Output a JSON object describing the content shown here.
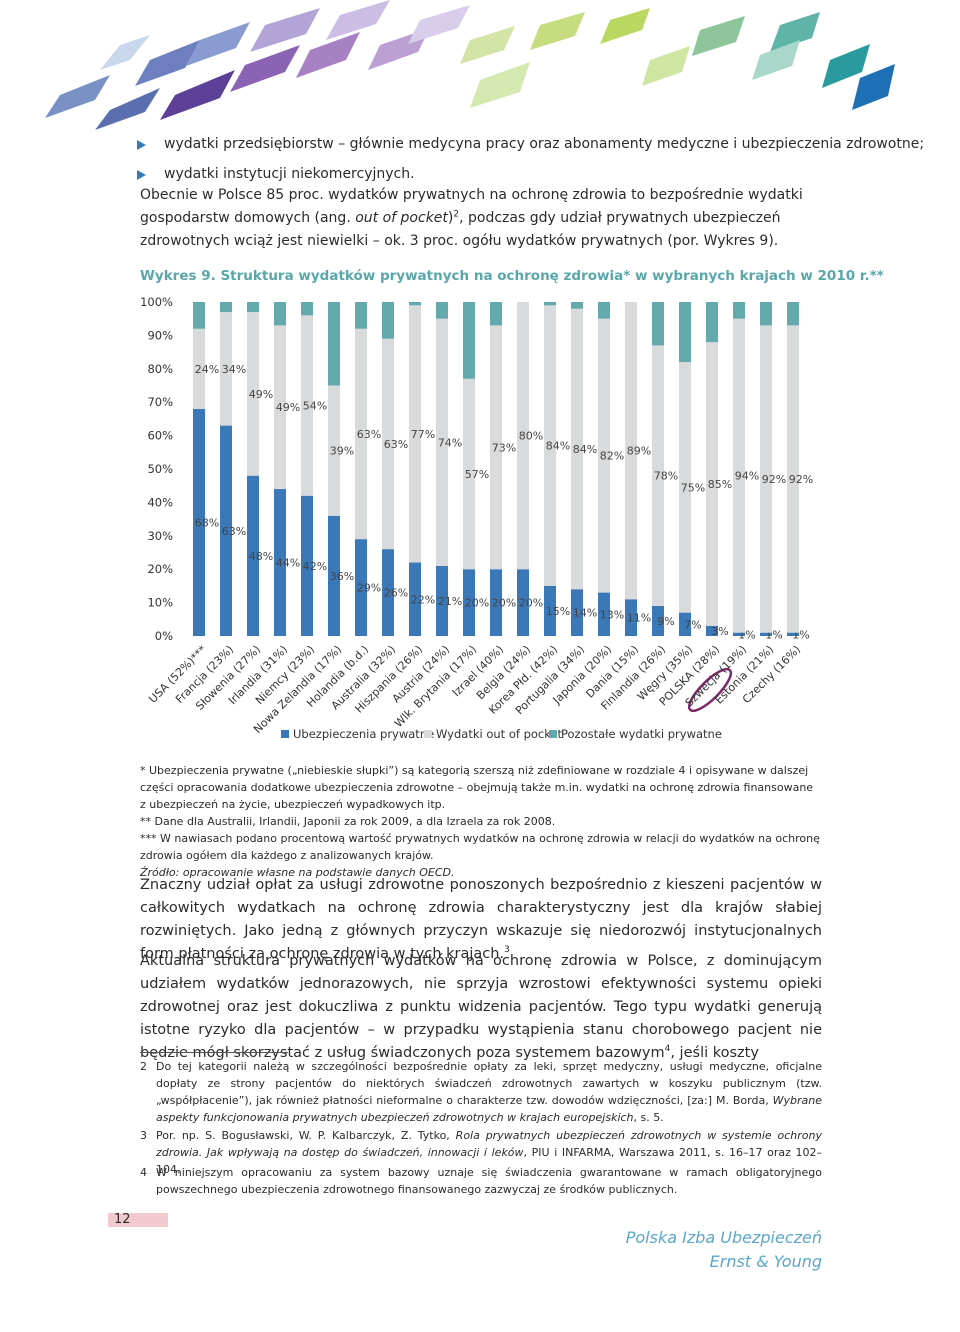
{
  "bullets": [
    "wydatki przedsiębiorstw – głównie medycyna pracy oraz abonamenty medyczne i ubezpieczenia zdrowotne;",
    "wydatki instytucji niekomercyjnych."
  ],
  "intro": [
    "Obecnie w Polsce 85 proc. wydatków prywatnych na ochronę zdrowia to bezpośrednie wydatki gospodarstw domowych (ang. ",
    "out of pocket",
    ")",
    "2",
    ", podczas gdy udział prywatnych ubezpieczeń zdrowotnych wciąż jest niewielki – ok. 3 proc. ogółu wydatków prywatnych (por. Wykres 9)."
  ],
  "chart_data": {
    "type": "stacked_bar",
    "title": "Wykres 9. Struktura wydatków prywatnych na ochronę zdrowia* w wybranych krajach w 2010 r.**",
    "categories": [
      "USA (52%)***",
      "Francja (23%)",
      "Słowenia (27%)",
      "Irlandia (31%)",
      "Niemcy (23%)",
      "Nowa Zelandia (17%)",
      "Holandia (b.d.)",
      "Australia (32%)",
      "Hiszpania (26%)",
      "Austria (24%)",
      "Wlk. Brytania (17%)",
      "Izrael (40%)",
      "Belgia (24%)",
      "Korea Płd. (42%)",
      "Portugalia (34%)",
      "Japonia (20%)",
      "Dania (15%)",
      "Finlandia (26%)",
      "Węgry (35%)",
      "POLSKA (28%)",
      "Szwecja (19%)",
      "Estonia (21%)",
      "Czechy (16%)"
    ],
    "series": [
      {
        "name": "Ubezpieczenia prywatne",
        "color": "#3a78b8",
        "values": [
          68,
          63,
          48,
          44,
          42,
          36,
          29,
          26,
          22,
          21,
          20,
          20,
          20,
          15,
          14,
          13,
          11,
          9,
          7,
          3,
          1,
          1,
          1
        ],
        "value_labels": [
          "68%",
          "63%",
          "48%",
          "44%",
          "42%",
          "36%",
          "29%",
          "26%",
          "22%",
          "21%",
          "20%",
          "20%",
          "20%",
          "15%",
          "14%",
          "13%",
          "11%",
          "9%",
          "7%",
          "3%",
          "1%",
          "1%",
          "1%"
        ]
      },
      {
        "name": "Wydatki out of pocket",
        "color": "#d9dadb",
        "values": [
          24,
          34,
          49,
          49,
          54,
          39,
          63,
          63,
          77,
          74,
          57,
          73,
          80,
          84,
          84,
          82,
          89,
          78,
          75,
          85,
          94,
          92,
          92
        ],
        "value_labels": [
          "24%",
          "34%",
          "49%",
          "49%",
          "54%",
          "39%",
          "63%",
          "63%",
          "77%",
          "74%",
          "57%",
          "73%",
          "80%",
          "84%",
          "84%",
          "82%",
          "89%",
          "78%",
          "75%",
          "85%",
          "94%",
          "92%",
          "92%"
        ]
      },
      {
        "name": "Pozostałe wydatki prywatne",
        "color": "#64a9ab",
        "values": [
          8,
          3,
          3,
          7,
          4,
          25,
          8,
          11,
          1,
          5,
          23,
          7,
          0,
          1,
          2,
          5,
          0,
          13,
          18,
          12,
          5,
          7,
          7
        ]
      }
    ],
    "ylim": [
      0,
      100
    ],
    "yticks": [
      {
        "value": 0,
        "label": "0%"
      },
      {
        "value": 10,
        "label": "10%"
      },
      {
        "value": 20,
        "label": "20%"
      },
      {
        "value": 30,
        "label": "30%"
      },
      {
        "value": 40,
        "label": "40%"
      },
      {
        "value": 50,
        "label": "50%"
      },
      {
        "value": 60,
        "label": "60%"
      },
      {
        "value": 70,
        "label": "70%"
      },
      {
        "value": 80,
        "label": "80%"
      },
      {
        "value": 90,
        "label": "90%"
      },
      {
        "value": 100,
        "label": "100%"
      }
    ],
    "grid": false,
    "legend": "bottom"
  },
  "notes": [
    "* Ubezpieczenia prywatne („niebieskie słupki”) są kategorią szerszą niż zdefiniowane w rozdziale 4 i opisywane w dalszej części opracowania dodatkowe ubezpieczenia zdrowotne – obejmują także m.in. wydatki na ochronę zdrowia finansowane z ubezpieczeń na życie, ubezpieczeń wypadkowych itp.",
    "** Dane dla Australii, Irlandii, Japonii za rok 2009, a dla Izraela za rok 2008.",
    "*** W nawiasach podano procentową wartość prywatnych wydatków na ochronę zdrowia w relacji do wydatków na ochronę zdrowia ogółem dla każdego z analizowanych krajów.",
    "Źródło: opracowanie własne na podstawie danych OECD."
  ],
  "paragraphs": [
    [
      "Znaczny udział opłat za usługi zdrowotne ponoszonych bezpośrednio z kieszeni pacjentów w całkowitych wydatkach na ochronę zdrowia charakterystyczny jest dla krajów słabiej rozwiniętych. Jako jedną z głównych przyczyn wskazuje się niedorozwój instytucjonalnych form płatności za ochronę zdrowia w tych krajach.",
      "3"
    ],
    [
      "Aktualna struktura prywatnych wydatków na ochronę zdrowia w Polsce, z dominującym udziałem wydatków jednorazowych, nie sprzyja wzrostowi efektywności systemu opieki zdrowotnej oraz jest dokuczliwa z punktu widzenia pacjentów. Tego typu wydatki generują istotne ryzyko dla pacjentów – w przypadku wystąpienia stanu chorobowego pacjent nie będzie mógł skorzystać z usług świadczonych poza systemem bazowym",
      "4",
      ", jeśli koszty"
    ]
  ],
  "footnotes": [
    {
      "number": 2,
      "text": [
        "Do tej kategorii należą w szczególności bezpośrednie opłaty za leki, sprzęt medyczny, usługi medyczne, oficjalne dopłaty ze strony pacjentów do niektórych świadczeń zdrowotnych zawartych w koszyku publicznym (tzw. „współpłacenie”), jak również płatności nieformalne o charakterze tzw. dowodów wdzięczności, [za:] M. Borda, ",
        "Wybrane aspekty funkcjonowania prywatnych ubezpieczeń zdrowotnych w krajach europejskich",
        ", s. 5."
      ]
    },
    {
      "number": 3,
      "text": [
        "Por. np. S. Bogusławski, W. P. Kalbarczyk, Z. Tytko, ",
        "Rola prywatnych ubezpieczeń zdrowotnych w systemie ochrony zdrowia. Jak wpływają na dostęp do świadczeń, innowacji i leków",
        ", PIU i INFARMA, Warszawa 2011, s. 16–17 oraz 102–104."
      ]
    },
    {
      "number": 4,
      "text": [
        "W niniejszym opracowaniu za system bazowy uznaje się świadczenia gwarantowane w ramach obligatoryjnego powszechnego ubezpieczenia zdrowotnego finansowanego zazwyczaj ze środków publicznych."
      ]
    }
  ],
  "page_number": 12,
  "footer": [
    "Polska Izba Ubezpieczeń",
    "Ernst & Young"
  ]
}
